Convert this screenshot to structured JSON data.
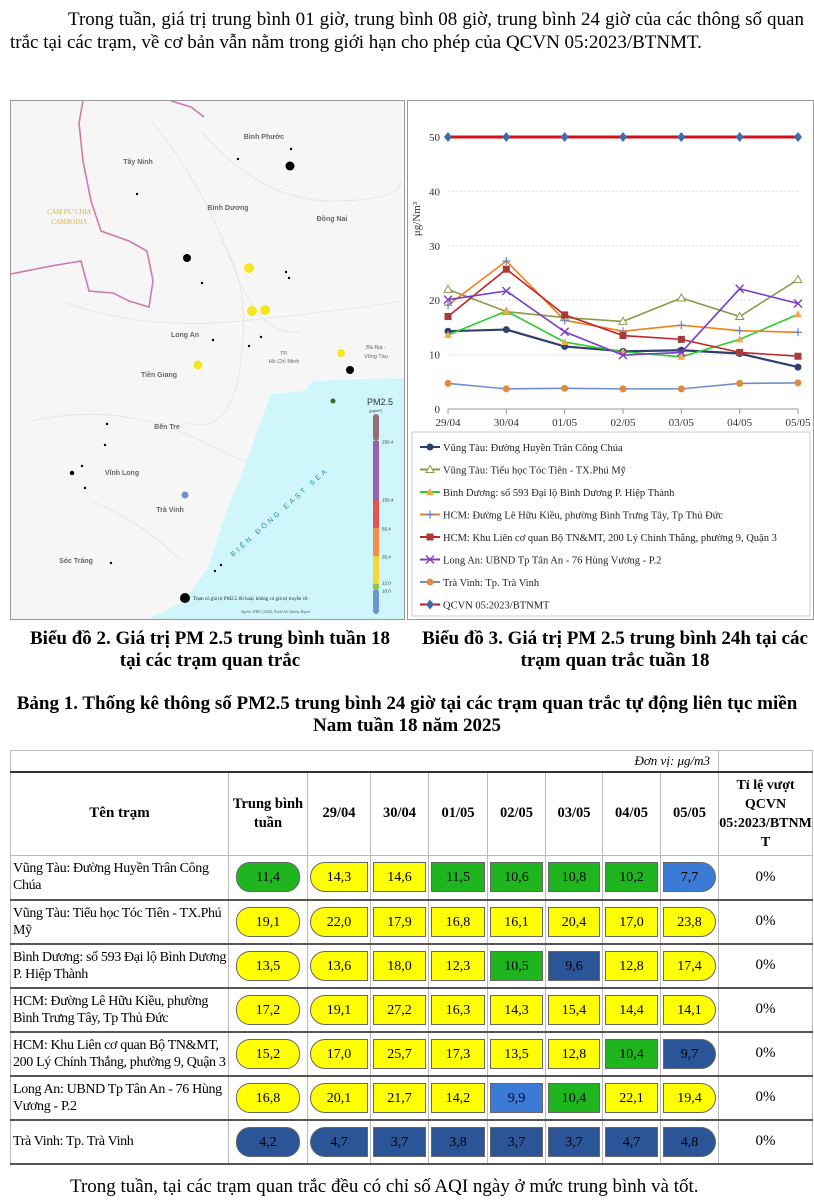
{
  "intro": "Trong tuần, giá trị trung bình 01 giờ, trung bình 08 giờ, trung bình 24 giờ của các thông số quan trắc tại các trạm, về cơ bản vẫn nằm trong giới hạn cho phép của QCVN 05:2023/BTNMT.",
  "map": {
    "labels": [
      "Bình Phước",
      "Tây Ninh",
      "Bình Dương",
      "Đồng Nai",
      "CAM PU CHIA",
      "CAMBODIA",
      "Long An",
      "TP.",
      "Hồ Chí Minh",
      "Bà Rịa -",
      "Vũng Tàu",
      "Tiền Giang",
      "Bến Tre",
      "Vĩnh Long",
      "Trà Vinh",
      "Sóc Trăng"
    ],
    "sea_label": "BIỂN ĐÔNG EAST SEA",
    "legend_title": "PM2.5",
    "legend_unit": "(μg/m³)",
    "legend_ticks": [
      "250.4",
      "150.4",
      "55.4",
      "35.4",
      "12.0",
      "10.0"
    ],
    "legend_colors": [
      "#9b6b7d",
      "#9a5fb5",
      "#e8534f",
      "#f48f4a",
      "#f5d93a",
      "#8fc453",
      "#6f95cc"
    ],
    "note": "Trạm có giá trị PM2.5 lỗi hoặc không có giá trị truyền về.",
    "source": "Nguồn: WHO, (2020), World Air Quality Report"
  },
  "chart_data": {
    "type": "line",
    "ylabel": "μg/Nm³",
    "ylim": [
      0,
      50
    ],
    "yticks": [
      "0",
      "10",
      "20",
      "30",
      "40",
      "50"
    ],
    "categories": [
      "29/04",
      "30/04",
      "01/05",
      "02/05",
      "03/05",
      "04/05",
      "05/05"
    ],
    "series": [
      {
        "name": "Vũng Tàu: Đường Huyền Trân Công Chúa",
        "line": "#2f3f6e",
        "marker": "circle",
        "mcolor": "#2f3f6e",
        "values": [
          14.3,
          14.6,
          11.5,
          10.6,
          10.8,
          10.2,
          7.7
        ]
      },
      {
        "name": "Vũng Tàu: Tiểu học Tóc Tiên - TX.Phú Mỹ",
        "line": "#8a9a4a",
        "marker": "triangle-open",
        "mcolor": "#8a9a4a",
        "values": [
          22.0,
          17.9,
          16.8,
          16.1,
          20.4,
          17.0,
          23.8
        ]
      },
      {
        "name": "Bình Dương: số 593 Đại lộ Bình Dương  P. Hiệp Thành",
        "line": "#2ecc2e",
        "marker": "triangle",
        "mcolor": "#f5a94a",
        "values": [
          13.6,
          18.0,
          12.3,
          10.5,
          9.6,
          12.8,
          17.4
        ]
      },
      {
        "name": "HCM: Đường Lê Hữu Kiều, phường Bình Trưng Tây,  Tp Thủ Đức",
        "line": "#f07f1a",
        "marker": "plus",
        "mcolor": "#6a7fc0",
        "values": [
          19.1,
          27.2,
          16.3,
          14.3,
          15.4,
          14.4,
          14.1
        ]
      },
      {
        "name": "HCM: Khu Liên cơ quan Bộ TN&MT, 200 Lý Chính Thắng, phường 9, Quận 3",
        "line": "#c0282a",
        "marker": "square",
        "mcolor": "#a83a3a",
        "values": [
          17.0,
          25.7,
          17.3,
          13.5,
          12.8,
          10.4,
          9.7
        ]
      },
      {
        "name": "Long An: UBND Tp Tân An - 76 Hùng Vương - P.2",
        "line": "#7b3fc0",
        "marker": "x",
        "mcolor": "#7b3fc0",
        "values": [
          20.1,
          21.7,
          14.2,
          9.9,
          10.4,
          22.1,
          19.4
        ]
      },
      {
        "name": "Trà Vinh: Tp. Trà Vinh",
        "line": "#6f8fc8",
        "marker": "circle",
        "mcolor": "#e08a3a",
        "values": [
          4.7,
          3.7,
          3.8,
          3.7,
          3.7,
          4.7,
          4.8
        ]
      },
      {
        "name": "QCVN 05:2023/BTNMT",
        "line": "#d0101a",
        "marker": "diamond",
        "mcolor": "#3b6cb0",
        "values": [
          50,
          50,
          50,
          50,
          50,
          50,
          50
        ]
      }
    ]
  },
  "captions": {
    "left": "Biểu đồ 2. Giá trị PM 2.5 trung bình tuần 18 tại các trạm quan trắc",
    "right": "Biểu đồ 3. Giá trị PM 2.5 trung bình 24h tại các trạm quan trắc tuần 18"
  },
  "table_title": "Bảng 1. Thống kê thông số PM2.5 trung bình 24 giờ tại các trạm quan trắc tự động liên tục miền Nam tuần 18 năm 2025",
  "table": {
    "unit": "Đơn vị: μg/m3",
    "headers": [
      "Tên trạm",
      "Trung bình tuần",
      "29/04",
      "30/04",
      "01/05",
      "02/05",
      "03/05",
      "04/05",
      "05/05",
      "Tỉ lệ vượt QCVN 05:2023/BTNMT"
    ],
    "rows": [
      {
        "name": "Vũng Tàu: Đường Huyền Trân Công Chúa",
        "avg": "11,4",
        "avg_c": "G",
        "days": [
          "14,3",
          "14,6",
          "11,5",
          "10,6",
          "10,8",
          "10,2",
          "7,7"
        ],
        "colors": [
          "Y",
          "Y",
          "G",
          "G",
          "G",
          "G",
          "LB"
        ],
        "ratio": "0%"
      },
      {
        "name": "Vũng Tàu: Tiểu học Tóc Tiên - TX.Phú Mỹ",
        "avg": "19,1",
        "avg_c": "Y",
        "days": [
          "22,0",
          "17,9",
          "16,8",
          "16,1",
          "20,4",
          "17,0",
          "23,8"
        ],
        "colors": [
          "Y",
          "Y",
          "Y",
          "Y",
          "Y",
          "Y",
          "Y"
        ],
        "ratio": "0%"
      },
      {
        "name": "Bình Dương: số 593 Đại lộ Bình Dương P. Hiệp Thành",
        "avg": "13,5",
        "avg_c": "Y",
        "days": [
          "13,6",
          "18,0",
          "12,3",
          "10,5",
          "9,6",
          "12,8",
          "17,4"
        ],
        "colors": [
          "Y",
          "Y",
          "Y",
          "G",
          "DB",
          "Y",
          "Y"
        ],
        "ratio": "0%"
      },
      {
        "name": "HCM: Đường Lê Hữu Kiều, phường Bình Trưng Tây, Tp Thủ Đức",
        "avg": "17,2",
        "avg_c": "Y",
        "days": [
          "19,1",
          "27,2",
          "16,3",
          "14,3",
          "15,4",
          "14,4",
          "14,1"
        ],
        "colors": [
          "Y",
          "Y",
          "Y",
          "Y",
          "Y",
          "Y",
          "Y"
        ],
        "ratio": "0%"
      },
      {
        "name": "HCM: Khu Liên cơ quan Bộ TN&MT, 200 Lý Chính Thắng, phường 9, Quận 3",
        "avg": "15,2",
        "avg_c": "Y",
        "days": [
          "17,0",
          "25,7",
          "17,3",
          "13,5",
          "12,8",
          "10,4",
          "9,7"
        ],
        "colors": [
          "Y",
          "Y",
          "Y",
          "Y",
          "Y",
          "G",
          "DB"
        ],
        "ratio": "0%"
      },
      {
        "name": "Long An: UBND Tp Tân An - 76 Hùng Vương - P.2",
        "avg": "16,8",
        "avg_c": "Y",
        "days": [
          "20,1",
          "21,7",
          "14,2",
          "9,9",
          "10,4",
          "22,1",
          "19,4"
        ],
        "colors": [
          "Y",
          "Y",
          "Y",
          "LB",
          "G",
          "Y",
          "Y"
        ],
        "ratio": "0%"
      },
      {
        "name": "Trà Vinh: Tp. Trà Vinh",
        "avg": "4,2",
        "avg_c": "DB",
        "days": [
          "4,7",
          "3,7",
          "3,8",
          "3,7",
          "3,7",
          "4,7",
          "4,8"
        ],
        "colors": [
          "DB",
          "DB",
          "DB",
          "DB",
          "DB",
          "DB",
          "DB"
        ],
        "ratio": "0%"
      }
    ]
  },
  "footer": "Trong tuần, tại các trạm quan trắc đều có chỉ số AQI ngày ở mức trung bình và tốt."
}
